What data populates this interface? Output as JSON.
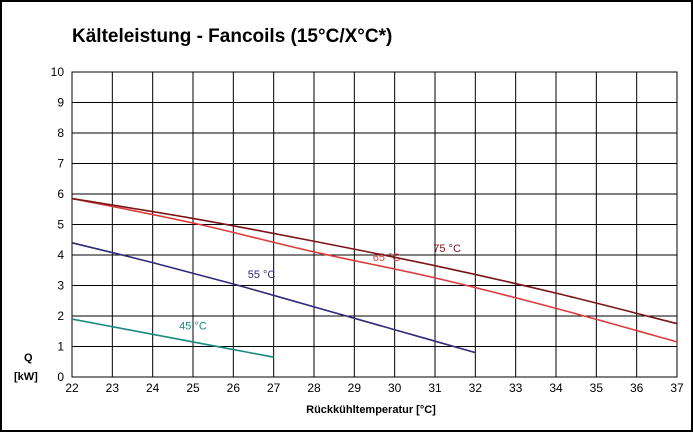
{
  "chart_data": {
    "type": "line",
    "title": "Kälteleistung - Fancoils (15°C/X°C*)",
    "xlabel": "Rückkühltemperatur [°C]",
    "ylabel": "Q",
    "ylabel_unit": "[kW]",
    "xlim": [
      22,
      37
    ],
    "ylim": [
      0,
      10
    ],
    "grid": true,
    "x_ticks": [
      "22",
      "23",
      "24",
      "25",
      "26",
      "27",
      "28",
      "29",
      "30",
      "31",
      "32",
      "33",
      "34",
      "35",
      "36",
      "37"
    ],
    "y_ticks": [
      "0",
      "1",
      "2",
      "3",
      "4",
      "5",
      "6",
      "7",
      "8",
      "9",
      "10"
    ],
    "series": [
      {
        "name": "45 °C",
        "color": "#1a8a80",
        "x": [
          22,
          23,
          24,
          25,
          26,
          27
        ],
        "y": [
          1.9,
          1.65,
          1.4,
          1.15,
          0.9,
          0.65
        ],
        "label_at": [
          25,
          1.55
        ]
      },
      {
        "name": "55 °C",
        "color": "#2e2a7a",
        "x": [
          22,
          24,
          26,
          28,
          30,
          32
        ],
        "y": [
          4.4,
          3.75,
          3.05,
          2.3,
          1.55,
          0.8
        ],
        "label_at": [
          26.7,
          3.25
        ]
      },
      {
        "name": "65 °C",
        "color": "#e23a3a",
        "x": [
          22,
          25,
          28,
          31,
          34,
          37
        ],
        "y": [
          5.85,
          5.05,
          4.1,
          3.25,
          2.25,
          1.15
        ],
        "label_at": [
          29.8,
          3.8
        ]
      },
      {
        "name": "75 °C",
        "color": "#7a1518",
        "x": [
          22,
          25,
          28,
          31,
          34,
          37
        ],
        "y": [
          5.85,
          5.2,
          4.45,
          3.65,
          2.75,
          1.75
        ],
        "label_at": [
          31.3,
          4.1
        ]
      }
    ]
  }
}
